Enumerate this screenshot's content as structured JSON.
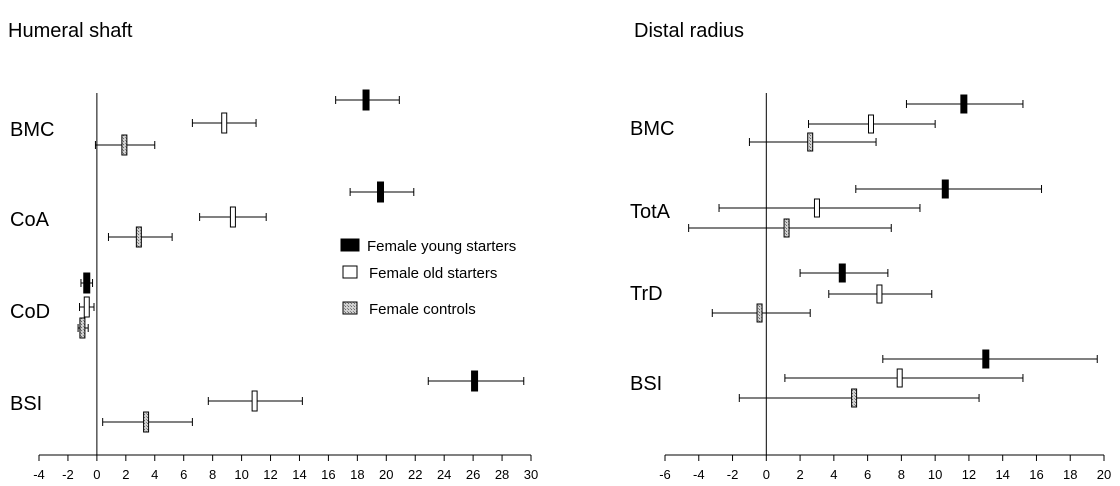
{
  "chart_data": [
    {
      "type": "forest",
      "title": "Humeral shaft",
      "xlim": [
        -4,
        30
      ],
      "xticks": [
        -4,
        -2,
        0,
        2,
        4,
        6,
        8,
        10,
        12,
        14,
        16,
        18,
        20,
        22,
        24,
        26,
        28,
        30
      ],
      "categories": [
        "BMC",
        "CoA",
        "CoD",
        "BSI"
      ],
      "series": [
        {
          "name": "Female young starters",
          "style": "solid",
          "color": "#000000",
          "values": [
            18.6,
            19.6,
            -0.7,
            26.1
          ],
          "ci_low": [
            16.5,
            17.5,
            -1.1,
            22.9
          ],
          "ci_high": [
            20.9,
            21.9,
            -0.3,
            29.5
          ]
        },
        {
          "name": "Female old starters",
          "style": "open",
          "color": "#ffffff",
          "values": [
            8.8,
            9.4,
            -0.7,
            10.9
          ],
          "ci_low": [
            6.6,
            7.1,
            -1.2,
            7.7
          ],
          "ci_high": [
            11.0,
            11.7,
            -0.2,
            14.2
          ]
        },
        {
          "name": "Female controls",
          "style": "hatched",
          "color": "#bdbdbd",
          "values": [
            1.9,
            2.9,
            -1.0,
            3.4
          ],
          "ci_low": [
            -0.1,
            0.8,
            -1.3,
            0.4
          ],
          "ci_high": [
            4.0,
            5.2,
            -0.6,
            6.6
          ]
        }
      ]
    },
    {
      "type": "forest",
      "title": "Distal radius",
      "xlim": [
        -6,
        20
      ],
      "xticks": [
        -6,
        -4,
        -2,
        0,
        2,
        4,
        6,
        8,
        10,
        12,
        14,
        16,
        18,
        20
      ],
      "categories": [
        "BMC",
        "TotA",
        "TrD",
        "BSI"
      ],
      "series": [
        {
          "name": "Female young starters",
          "style": "solid",
          "color": "#000000",
          "values": [
            11.7,
            10.6,
            4.5,
            13.0
          ],
          "ci_low": [
            8.3,
            5.3,
            2.0,
            6.9
          ],
          "ci_high": [
            15.2,
            16.3,
            7.2,
            19.6
          ]
        },
        {
          "name": "Female old starters",
          "style": "open",
          "color": "#ffffff",
          "values": [
            6.2,
            3.0,
            6.7,
            7.9
          ],
          "ci_low": [
            2.5,
            -2.8,
            3.7,
            1.1
          ],
          "ci_high": [
            10.0,
            9.1,
            9.8,
            15.2
          ]
        },
        {
          "name": "Female controls",
          "style": "hatched",
          "color": "#bdbdbd",
          "values": [
            2.6,
            1.2,
            -0.4,
            5.2
          ],
          "ci_low": [
            -1.0,
            -4.6,
            -3.2,
            -1.6
          ],
          "ci_high": [
            6.5,
            7.4,
            2.6,
            12.6
          ]
        }
      ]
    }
  ],
  "legend": {
    "placement": "center",
    "items": [
      {
        "label": "Female young starters",
        "style": "solid"
      },
      {
        "label": "Female old starters",
        "style": "open"
      },
      {
        "label": "Female controls",
        "style": "hatched"
      }
    ]
  }
}
